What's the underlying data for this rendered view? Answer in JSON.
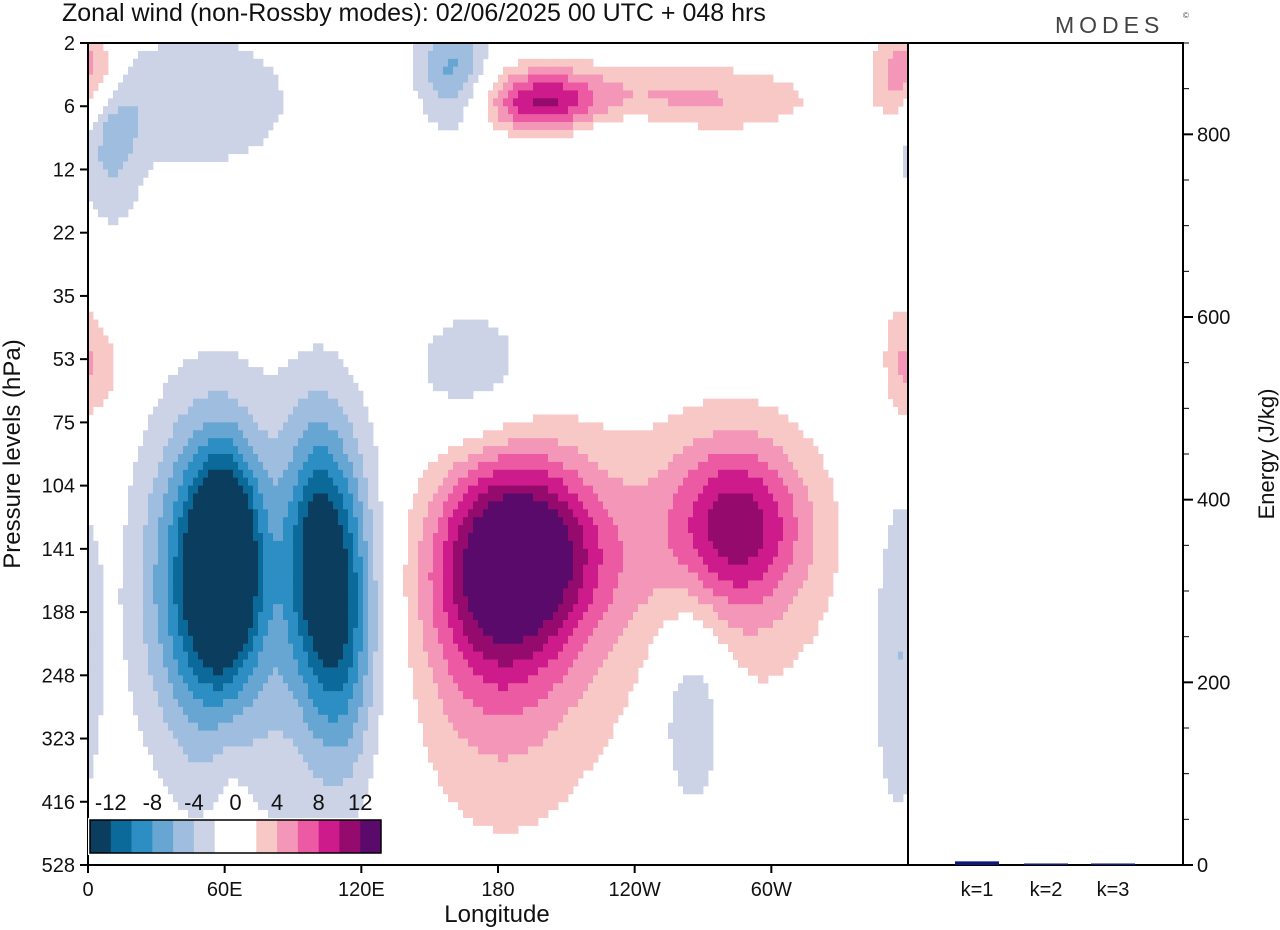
{
  "header": {
    "title": "Zonal wind (non-Rossby modes):  02/06/2025  00 UTC  + 048 hrs",
    "logo_text": "MODES",
    "logo_mark": "©"
  },
  "colors": {
    "palette": [
      "#0a3d5e",
      "#0b6a9a",
      "#2d8ec4",
      "#67a6d2",
      "#9fbedf",
      "#ccd3e6",
      "#ffffff",
      "#ffffff",
      "#f8c8c7",
      "#f496b7",
      "#ec5aa4",
      "#cd1b8b",
      "#940a6d",
      "#5a0a6b"
    ],
    "energy_bar": "#0b1a7a",
    "axis": "#000000"
  },
  "chart_data": [
    {
      "type": "heatmap",
      "title": "Zonal wind (non-Rossby modes):  02/06/2025  00 UTC  + 048 hrs",
      "xlabel": "Longitude",
      "ylabel": "Pressure levels (hPa)",
      "x_ticks": [
        "0",
        "60E",
        "120E",
        "180",
        "120W",
        "60W"
      ],
      "y_ticks": [
        "2",
        "6",
        "12",
        "22",
        "35",
        "53",
        "75",
        "104",
        "141",
        "188",
        "248",
        "323",
        "416",
        "528"
      ],
      "colorbar": {
        "labels": [
          "-12",
          "-8",
          "-4",
          "0",
          "4",
          "8",
          "12"
        ],
        "levels": [
          -14,
          -12,
          -10,
          -8,
          -6,
          -4,
          -2,
          0,
          2,
          4,
          6,
          8,
          10,
          12,
          14
        ]
      },
      "features": [
        {
          "lon": 60,
          "level_index": 8.2,
          "value": -13,
          "lon_width": 10,
          "level_width": 1.1
        },
        {
          "lon": 50,
          "level_index": 8.5,
          "value": -9,
          "lon_width": 18,
          "level_width": 1.8
        },
        {
          "lon": 100,
          "level_index": 8.0,
          "value": -8,
          "lon_width": 10,
          "level_width": 1.5
        },
        {
          "lon": 112,
          "level_index": 9.1,
          "value": -8,
          "lon_width": 11,
          "level_width": 1.7
        },
        {
          "lon": 90,
          "level_index": 9.0,
          "value": -4,
          "lon_width": 40,
          "level_width": 2.6
        },
        {
          "lon": 265,
          "level_index": 10.4,
          "value": -5,
          "lon_width": 12,
          "level_width": 1.3
        },
        {
          "lon": 355,
          "level_index": 9.6,
          "value": -4,
          "lon_width": 8,
          "level_width": 2.0
        },
        {
          "lon": 160,
          "level_index": 0.5,
          "value": -7,
          "lon_width": 12,
          "level_width": 0.6
        },
        {
          "lon": 215,
          "level_index": 1.2,
          "value": -5,
          "lon_width": 30,
          "level_width": 0.5
        },
        {
          "lon": 50,
          "level_index": 0.9,
          "value": -4,
          "lon_width": 30,
          "level_width": 0.8
        },
        {
          "lon": 10,
          "level_index": 1.6,
          "value": -4,
          "lon_width": 10,
          "level_width": 1.0
        },
        {
          "lon": 170,
          "level_index": 5.2,
          "value": -4,
          "lon_width": 20,
          "level_width": 0.8
        },
        {
          "lon": 195,
          "level_index": 8.0,
          "value": 9,
          "lon_width": 25,
          "level_width": 1.0
        },
        {
          "lon": 180,
          "level_index": 8.6,
          "value": 7,
          "lon_width": 22,
          "level_width": 1.4
        },
        {
          "lon": 178,
          "level_index": 9.6,
          "value": 4,
          "lon_width": 40,
          "level_width": 2.4
        },
        {
          "lon": 285,
          "level_index": 7.6,
          "value": 8,
          "lon_width": 20,
          "level_width": 0.9
        },
        {
          "lon": 280,
          "level_index": 8.2,
          "value": 4,
          "lon_width": 35,
          "level_width": 1.7
        },
        {
          "lon": 200,
          "level_index": 1.0,
          "value": 10,
          "lon_width": 18,
          "level_width": 0.4
        },
        {
          "lon": 240,
          "level_index": 0.9,
          "value": 6,
          "lon_width": 50,
          "level_width": 0.4
        },
        {
          "lon": 7,
          "level_index": 0.4,
          "value": 4,
          "lon_width": 7,
          "level_width": 0.4
        },
        {
          "lon": 355,
          "level_index": 0.5,
          "value": 5,
          "lon_width": 8,
          "level_width": 0.6
        },
        {
          "lon": 63,
          "level_index": 13.0,
          "value": 2,
          "lon_width": 6,
          "level_width": 1.6
        },
        {
          "lon": 6,
          "level_index": 5.2,
          "value": 3,
          "lon_width": 8,
          "level_width": 0.6
        },
        {
          "lon": 356,
          "level_index": 5.0,
          "value": 3,
          "lon_width": 6,
          "level_width": 0.8
        }
      ]
    },
    {
      "type": "bar",
      "ylabel": "Energy (J/kg)",
      "categories": [
        "k=1",
        "k=2",
        "k=3"
      ],
      "values": [
        4,
        1.5,
        1
      ],
      "ylim": [
        0,
        900
      ],
      "y_ticks": [
        0,
        200,
        400,
        600,
        800
      ]
    }
  ]
}
